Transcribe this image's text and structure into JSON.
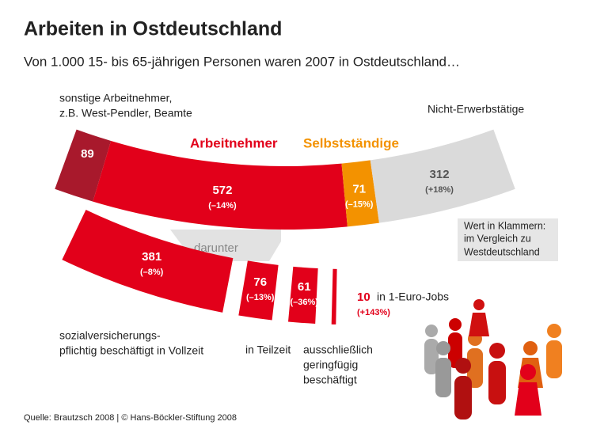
{
  "title": "Arbeiten in Ostdeutschland",
  "subtitle": "Von 1.000 15- bis 65-jährigen Personen waren 2007 in Ostdeutschland…",
  "chart_data": {
    "type": "arc-bar",
    "top": {
      "segments": [
        {
          "label": [
            "sonstige Arbeitnehmer,",
            "z.B. West-Pendler, Beamte"
          ],
          "value": 89,
          "color": "#a8192c"
        },
        {
          "label": [
            "Arbeitnehmer"
          ],
          "value": 572,
          "change": "(–14%)",
          "color": "#e2001a"
        },
        {
          "label": [
            "Selbstständige"
          ],
          "value": 71,
          "change": "(–15%)",
          "color": "#f39200"
        },
        {
          "label": [
            "Nicht-Erwerbstätige"
          ],
          "value": 312,
          "change": "(+18%)",
          "color": "#dadada"
        }
      ]
    },
    "bottom": {
      "label": "darunter",
      "color": "#e2001a",
      "segments": [
        {
          "label": [
            "sozialversicherungs-",
            "pflichtig beschäftigt in Vollzeit"
          ],
          "value": 381,
          "change": "(–8%)"
        },
        {
          "label": [
            "in Teilzeit"
          ],
          "value": 76,
          "change": "(–13%)"
        },
        {
          "label": [
            "ausschließlich",
            "geringfügig",
            "beschäftigt"
          ],
          "value": 61,
          "change": "(–36%)"
        },
        {
          "label": [
            "in 1-Euro-Jobs"
          ],
          "value": 10,
          "change": "(+143%)"
        }
      ]
    }
  },
  "note": [
    "Wert in Klammern:",
    "im Vergleich zu",
    "Westdeutschland"
  ],
  "source": "Quelle: Brautzsch 2008 | © Hans-Böckler-Stiftung 2008"
}
